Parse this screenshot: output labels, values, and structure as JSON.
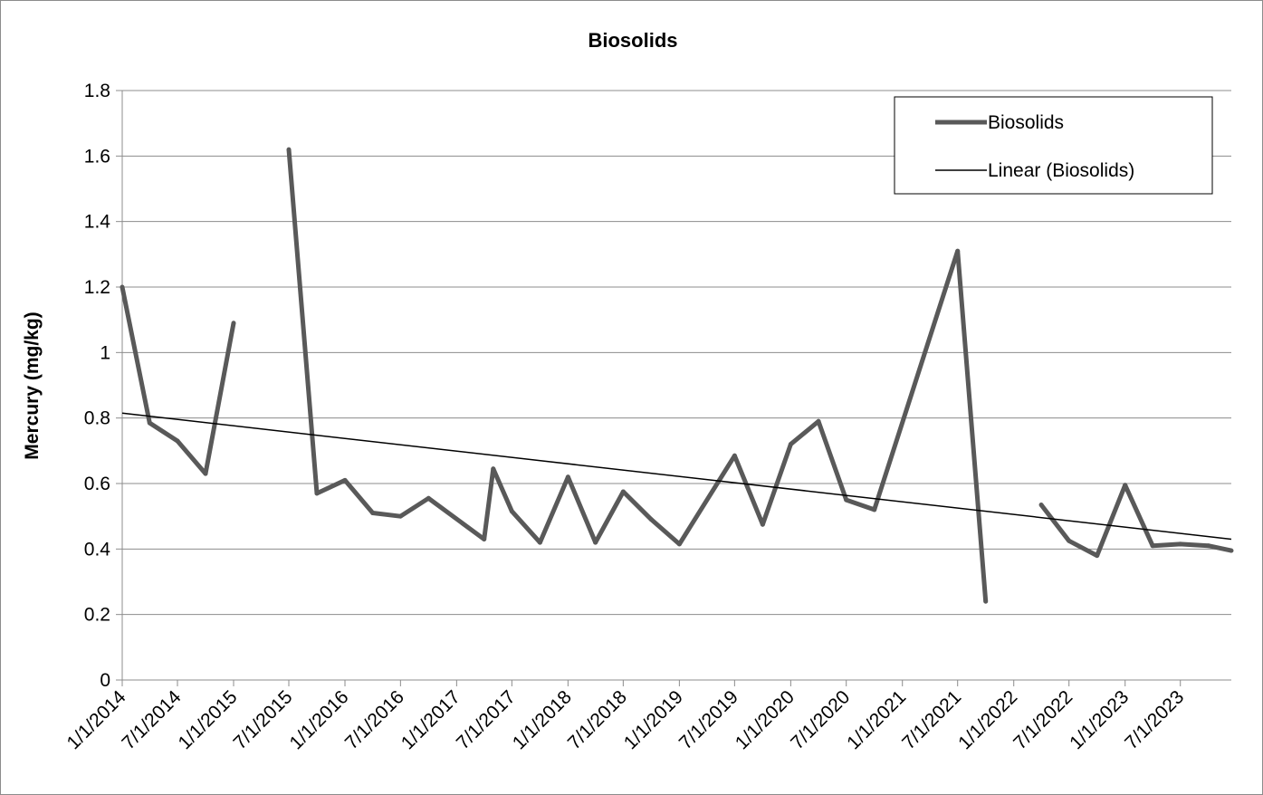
{
  "chart_data": {
    "type": "line",
    "title": "Biosolids",
    "xlabel": "",
    "ylabel": "Mercury (mg/kg)",
    "ylim": [
      0,
      1.8
    ],
    "yticks": [
      "0",
      "0.2",
      "0.4",
      "0.6",
      "0.8",
      "1",
      "1.2",
      "1.4",
      "1.6",
      "1.8"
    ],
    "xlim": [
      "2014-01-01",
      "2023-12-15"
    ],
    "xticks": [
      {
        "date": "2014-01-01",
        "label": "1/1/2014"
      },
      {
        "date": "2014-07-01",
        "label": "7/1/2014"
      },
      {
        "date": "2015-01-01",
        "label": "1/1/2015"
      },
      {
        "date": "2015-07-01",
        "label": "7/1/2015"
      },
      {
        "date": "2016-01-01",
        "label": "1/1/2016"
      },
      {
        "date": "2016-07-01",
        "label": "7/1/2016"
      },
      {
        "date": "2017-01-01",
        "label": "1/1/2017"
      },
      {
        "date": "2017-07-01",
        "label": "7/1/2017"
      },
      {
        "date": "2018-01-01",
        "label": "1/1/2018"
      },
      {
        "date": "2018-07-01",
        "label": "7/1/2018"
      },
      {
        "date": "2019-01-01",
        "label": "1/1/2019"
      },
      {
        "date": "2019-07-01",
        "label": "7/1/2019"
      },
      {
        "date": "2020-01-01",
        "label": "1/1/2020"
      },
      {
        "date": "2020-07-01",
        "label": "7/1/2020"
      },
      {
        "date": "2021-01-01",
        "label": "1/1/2021"
      },
      {
        "date": "2021-07-01",
        "label": "7/1/2021"
      },
      {
        "date": "2022-01-01",
        "label": "1/1/2022"
      },
      {
        "date": "2022-07-01",
        "label": "7/1/2022"
      },
      {
        "date": "2023-01-01",
        "label": "1/1/2023"
      },
      {
        "date": "2023-07-01",
        "label": "7/1/2023"
      }
    ],
    "grid": true,
    "legend_position": "top-right",
    "series": [
      {
        "name": "Biosolids",
        "color": "#595959",
        "segments": [
          [
            {
              "x": "2014-01-01",
              "y": 1.2
            },
            {
              "x": "2014-04-01",
              "y": 0.785
            },
            {
              "x": "2014-07-01",
              "y": 0.73
            },
            {
              "x": "2014-10-01",
              "y": 0.63
            },
            {
              "x": "2015-01-01",
              "y": 1.09
            }
          ],
          [
            {
              "x": "2015-07-01",
              "y": 1.62
            },
            {
              "x": "2015-10-01",
              "y": 0.57
            },
            {
              "x": "2016-01-01",
              "y": 0.61
            },
            {
              "x": "2016-04-01",
              "y": 0.51
            },
            {
              "x": "2016-07-01",
              "y": 0.5
            },
            {
              "x": "2016-10-01",
              "y": 0.555
            },
            {
              "x": "2017-04-01",
              "y": 0.43
            },
            {
              "x": "2017-05-01",
              "y": 0.645
            },
            {
              "x": "2017-07-01",
              "y": 0.515
            },
            {
              "x": "2017-10-01",
              "y": 0.42
            },
            {
              "x": "2018-01-01",
              "y": 0.62
            },
            {
              "x": "2018-04-01",
              "y": 0.42
            },
            {
              "x": "2018-07-01",
              "y": 0.575
            },
            {
              "x": "2018-10-01",
              "y": 0.49
            },
            {
              "x": "2019-01-01",
              "y": 0.415
            },
            {
              "x": "2019-07-01",
              "y": 0.685
            },
            {
              "x": "2019-10-01",
              "y": 0.475
            },
            {
              "x": "2020-01-01",
              "y": 0.72
            },
            {
              "x": "2020-04-01",
              "y": 0.79
            },
            {
              "x": "2020-07-01",
              "y": 0.55
            },
            {
              "x": "2020-10-01",
              "y": 0.52
            },
            {
              "x": "2021-07-01",
              "y": 1.31
            },
            {
              "x": "2021-10-01",
              "y": 0.24
            }
          ],
          [
            {
              "x": "2022-04-01",
              "y": 0.535
            },
            {
              "x": "2022-07-01",
              "y": 0.425
            },
            {
              "x": "2022-10-01",
              "y": 0.38
            },
            {
              "x": "2023-01-01",
              "y": 0.595
            },
            {
              "x": "2023-04-01",
              "y": 0.41
            },
            {
              "x": "2023-07-01",
              "y": 0.415
            },
            {
              "x": "2023-10-01",
              "y": 0.41
            },
            {
              "x": "2023-12-15",
              "y": 0.395
            }
          ]
        ]
      },
      {
        "name": "Linear (Biosolids)",
        "color": "#000000",
        "points": [
          {
            "x": "2014-01-01",
            "y": 0.815
          },
          {
            "x": "2023-12-15",
            "y": 0.43
          }
        ]
      }
    ]
  }
}
